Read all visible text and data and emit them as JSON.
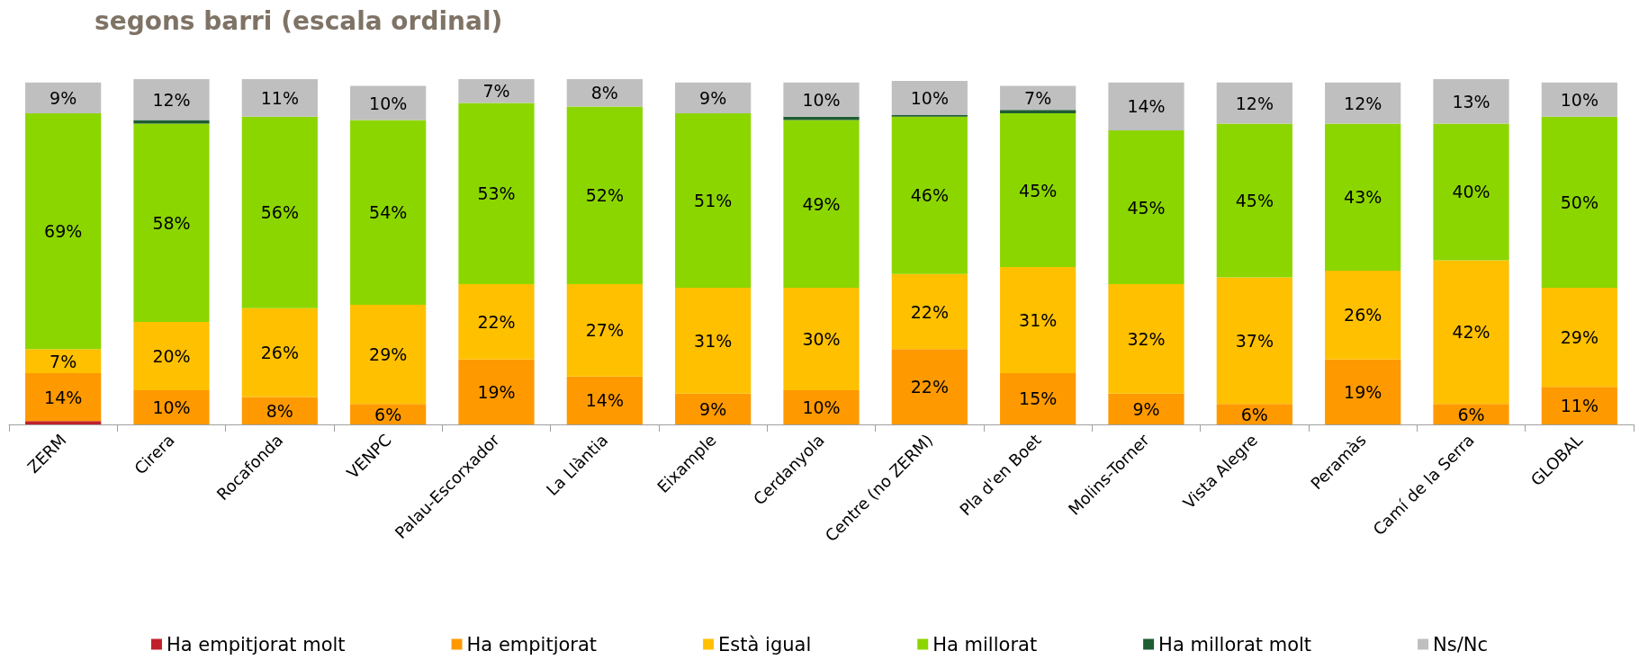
{
  "chart_data": {
    "type": "bar",
    "stacked": true,
    "title": "segons barri (escala ordinal)",
    "categories": [
      "ZERM",
      "Cirera",
      "Rocafonda",
      "VENPC",
      "Palau-Escorxador",
      "La Llàntia",
      "Eixample",
      "Cerdanyola",
      "Centre (no ZERM)",
      "Pla d'en Boet",
      "Molins-Torner",
      "Vista Alegre",
      "Peramàs",
      "Camí de la Serra",
      "GLOBAL"
    ],
    "series": [
      {
        "name": "Ha empitjorat molt",
        "color": "#c0202a",
        "values": [
          1,
          null,
          null,
          null,
          null,
          null,
          null,
          null,
          null,
          null,
          null,
          null,
          null,
          null,
          null
        ],
        "value_labels": [
          null,
          null,
          null,
          null,
          null,
          null,
          null,
          null,
          null,
          null,
          null,
          null,
          null,
          null,
          null
        ]
      },
      {
        "name": "Ha empitjorat",
        "color": "#ff9900",
        "values": [
          14,
          10,
          8,
          6,
          19,
          14,
          9,
          10,
          22,
          15,
          9,
          6,
          19,
          6,
          11
        ],
        "value_labels": [
          "14%",
          "10%",
          "8%",
          "6%",
          "19%",
          "14%",
          "9%",
          "10%",
          "22%",
          "15%",
          "9%",
          "6%",
          "19%",
          "6%",
          "11%"
        ]
      },
      {
        "name": "Està igual",
        "color": "#ffc000",
        "values": [
          7,
          20,
          26,
          29,
          22,
          27,
          31,
          30,
          22,
          31,
          32,
          37,
          26,
          42,
          29
        ],
        "value_labels": [
          "7%",
          "20%",
          "26%",
          "29%",
          "22%",
          "27%",
          "31%",
          "30%",
          "22%",
          "31%",
          "32%",
          "37%",
          "26%",
          "42%",
          "29%"
        ]
      },
      {
        "name": "Ha millorat",
        "color": "#8cd600",
        "values": [
          69,
          58,
          56,
          54,
          53,
          52,
          51,
          49,
          46,
          45,
          45,
          45,
          43,
          40,
          50
        ],
        "value_labels": [
          "69%",
          "58%",
          "56%",
          "54%",
          "53%",
          "52%",
          "51%",
          "49%",
          "46%",
          "45%",
          "45%",
          "45%",
          "43%",
          "40%",
          "50%"
        ]
      },
      {
        "name": "Ha millorat molt",
        "color": "#1e5c32",
        "values": [
          null,
          1,
          null,
          null,
          null,
          null,
          null,
          1,
          0.5,
          1,
          null,
          null,
          null,
          null,
          null
        ],
        "value_labels": [
          null,
          null,
          null,
          null,
          null,
          null,
          null,
          null,
          null,
          null,
          null,
          null,
          null,
          null,
          null
        ]
      },
      {
        "name": "Ns/Nc",
        "color": "#bfbfbf",
        "values": [
          9,
          12,
          11,
          10,
          7,
          8,
          9,
          10,
          10,
          7,
          14,
          12,
          12,
          13,
          10
        ],
        "value_labels": [
          "9%",
          "12%",
          "11%",
          "10%",
          "7%",
          "8%",
          "9%",
          "10%",
          "10%",
          "7%",
          "14%",
          "12%",
          "12%",
          "13%",
          "10%"
        ]
      }
    ],
    "legend": "bottom",
    "grid": false
  }
}
